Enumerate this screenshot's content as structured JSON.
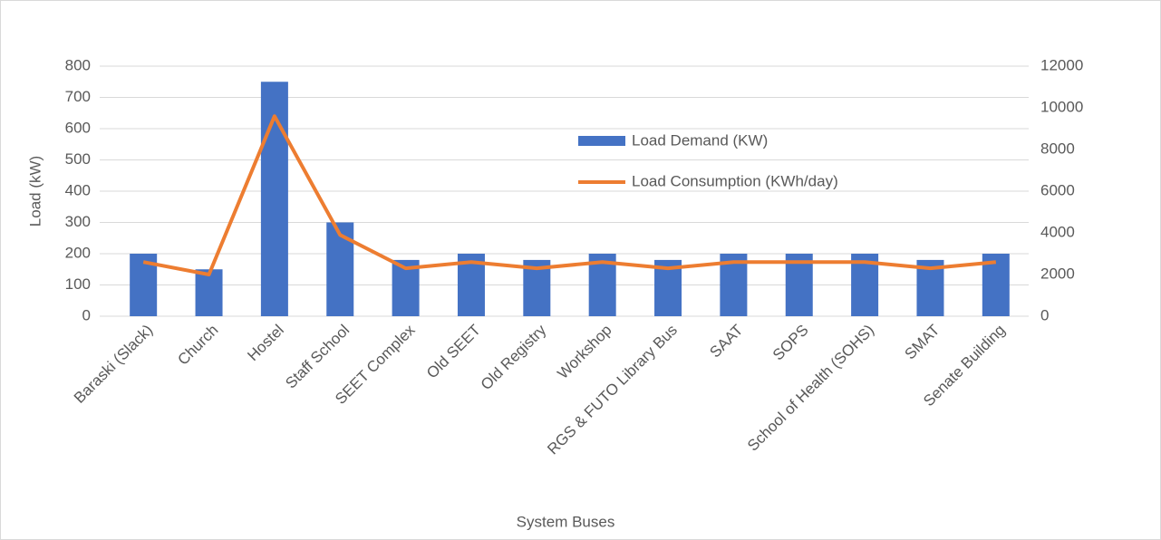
{
  "chart_data": {
    "type": "bar_line",
    "x_label": "System Buses",
    "y_label": "Load (kW)",
    "categories": [
      "Baraski (Slack)",
      "Church",
      "Hostel",
      "Staff School",
      "SEET Complex",
      "Old SEET",
      "Old Registry",
      "Workshop",
      "RGS & FUTO Library Bus",
      "SAAT",
      "SOPS",
      "School of Health (SOHS)",
      "SMAT",
      "Senate Building"
    ],
    "series": [
      {
        "name": "Load Demand (KW)",
        "type": "bar",
        "color": "#4472c4",
        "values": [
          200,
          150,
          750,
          300,
          180,
          200,
          180,
          200,
          180,
          200,
          200,
          200,
          180,
          200
        ]
      },
      {
        "name": "Load Consumption (KWh/day)",
        "type": "line",
        "axis": "y2",
        "color": "#ed7d31",
        "values": [
          2600,
          2000,
          9600,
          3900,
          2300,
          2600,
          2300,
          2600,
          2300,
          2600,
          2600,
          2600,
          2300,
          2600
        ]
      }
    ],
    "ylim": [
      0,
      800
    ],
    "yticks": [
      0,
      100,
      200,
      300,
      400,
      500,
      600,
      700,
      800
    ],
    "y2lim": [
      0,
      12000
    ],
    "y2ticks": [
      0,
      2000,
      4000,
      6000,
      8000,
      10000,
      12000
    ],
    "grid": true
  }
}
